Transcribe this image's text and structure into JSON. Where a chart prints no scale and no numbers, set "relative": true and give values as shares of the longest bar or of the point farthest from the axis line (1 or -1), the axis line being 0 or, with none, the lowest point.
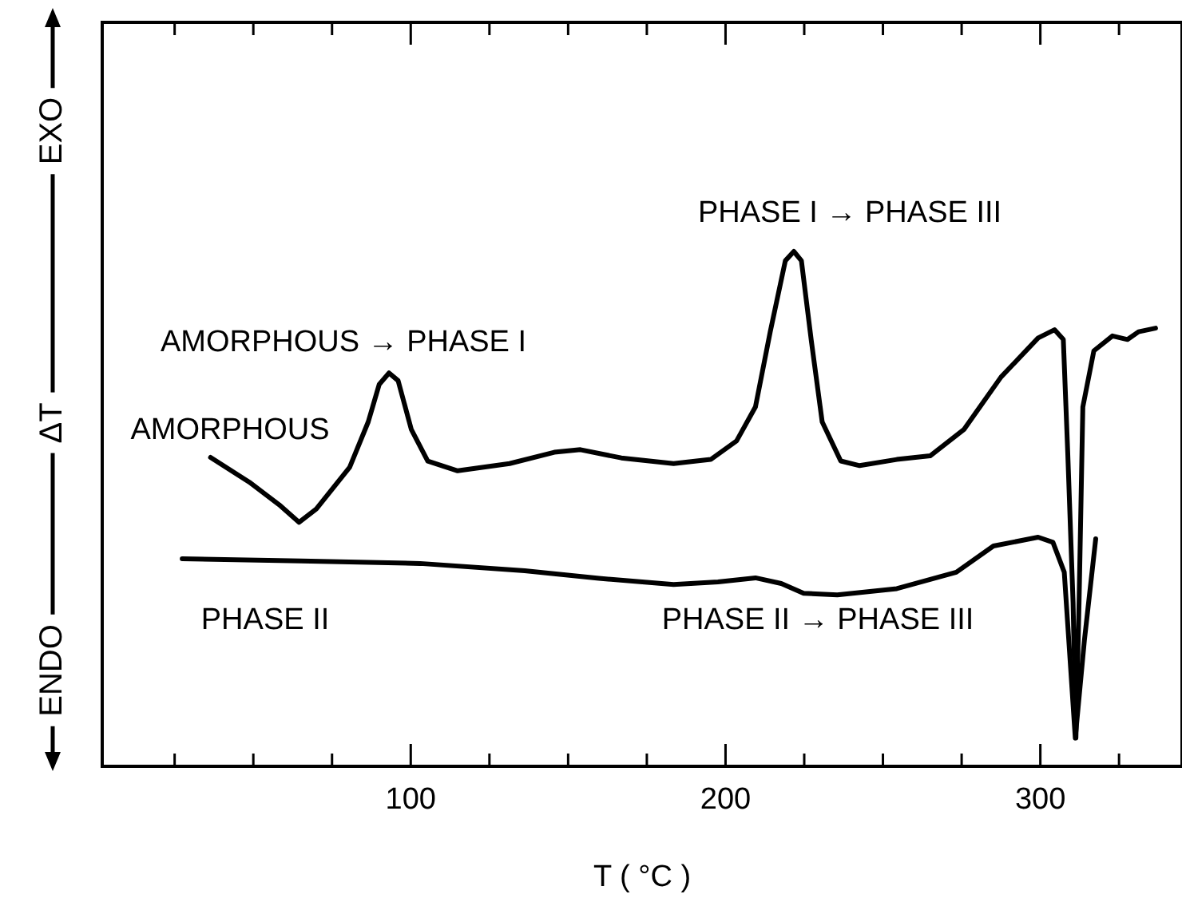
{
  "chart_data": {
    "type": "line",
    "relative": true,
    "xlabel": "T ( °C )",
    "ylabel": "ΔT",
    "xlim": [
      2,
      345
    ],
    "xticks": [
      {
        "value": 25,
        "label": null
      },
      {
        "value": 50,
        "label": null
      },
      {
        "value": 75,
        "label": null
      },
      100,
      {
        "value": 125,
        "label": null
      },
      {
        "value": 150,
        "label": null
      },
      {
        "value": 175,
        "label": null
      },
      200,
      {
        "value": 225,
        "label": null
      },
      {
        "value": 250,
        "label": null
      },
      {
        "value": 275,
        "label": null
      },
      300,
      {
        "value": 325,
        "label": null
      }
    ],
    "grid": false,
    "legend": false,
    "marker": "none",
    "line_style": "solid",
    "annotations": [
      "EXO",
      "ENDO",
      "AMORPHOUS → PHASE I",
      "AMORPHOUS",
      "PHASE I → PHASE III",
      "PHASE II",
      "PHASE II → PHASE III"
    ],
    "series": [
      {
        "color": "#000000",
        "x": [
          36.4,
          48.7,
          58.2,
          64.5,
          70,
          80.6,
          86.5,
          90,
          93.1,
          96,
          100.2,
          105.4,
          114.9,
          131.4,
          145.6,
          153.9,
          166.9,
          183.5,
          195.3,
          203.5,
          209.5,
          214.2,
          219,
          221.7,
          224.1,
          227.2,
          230.7,
          236.6,
          242.6,
          254.4,
          265,
          275.7,
          287.5,
          299.3,
          304.5,
          307.3,
          308.7,
          310.4,
          311.3,
          312.3,
          313.5,
          317,
          322.9,
          327.7,
          331.2,
          336.6
        ],
        "values": [
          0.6,
          0.552,
          0.508,
          0.474,
          0.5,
          0.581,
          0.669,
          0.742,
          0.764,
          0.749,
          0.654,
          0.593,
          0.574,
          0.588,
          0.61,
          0.615,
          0.599,
          0.588,
          0.596,
          0.632,
          0.698,
          0.844,
          0.982,
          1.0,
          0.982,
          0.829,
          0.669,
          0.593,
          0.584,
          0.596,
          0.603,
          0.654,
          0.756,
          0.832,
          0.848,
          0.829,
          0.61,
          0.318,
          0.055,
          0.318,
          0.698,
          0.807,
          0.836,
          0.829,
          0.844,
          0.851
        ]
      },
      {
        "color": "#000000",
        "x": [
          27.4,
          65.2,
          103,
          136.2,
          159.8,
          183.5,
          197.6,
          209.5,
          217.7,
          224.8,
          235.5,
          254.4,
          273.3,
          285.1,
          299.3,
          304,
          307.6,
          311.1,
          314,
          317.6
        ],
        "values": [
          0.403,
          0.399,
          0.394,
          0.38,
          0.365,
          0.353,
          0.358,
          0.366,
          0.355,
          0.336,
          0.333,
          0.345,
          0.377,
          0.428,
          0.445,
          0.435,
          0.377,
          0.055,
          0.245,
          0.442
        ]
      }
    ]
  }
}
